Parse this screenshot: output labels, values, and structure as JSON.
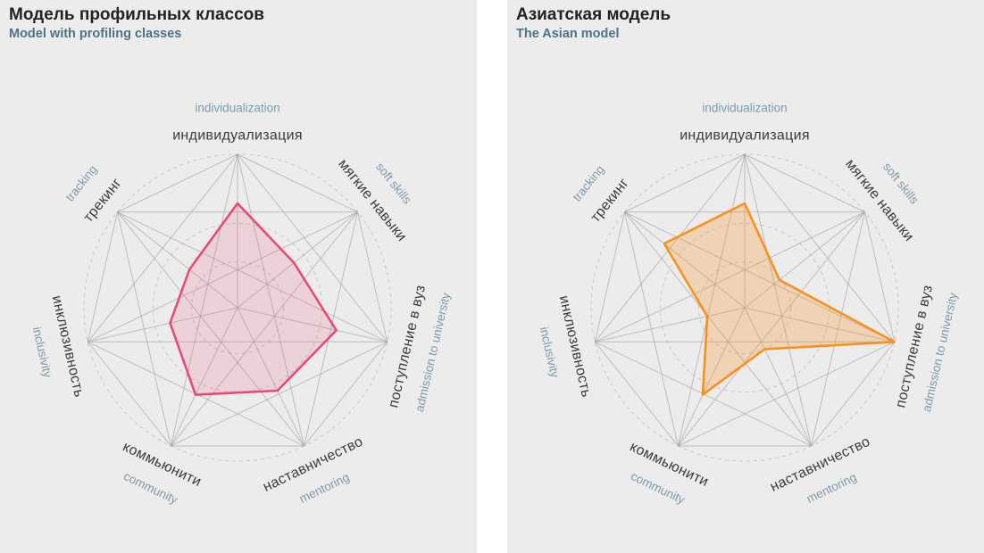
{
  "style": {
    "panel_bg": "#ececec",
    "title_color": "#222222",
    "subtitle_color": "#4d7383",
    "axis_ru_color": "#3c3c3c",
    "axis_en_color": "#7d9bab",
    "grid_line": "#9e9e9e",
    "dashed_circle": "#c6c6c6",
    "dashed_circle_levels": [
      0.3,
      0.55,
      1.0
    ]
  },
  "chart_data": [
    {
      "type": "radar",
      "title": "Модель профильных классов",
      "subtitle": "Model with profiling classes",
      "value_range": [
        0,
        1
      ],
      "axes": [
        {
          "ru": "индивидуализация",
          "en": "individualization"
        },
        {
          "ru": "мягкие навыки",
          "en": "soft skills"
        },
        {
          "ru": "поступление в вуз",
          "en": "admission to university"
        },
        {
          "ru": "наставничество",
          "en": "mentoring"
        },
        {
          "ru": "коммьюнити",
          "en": "community"
        },
        {
          "ru": "инклюзивность",
          "en": "inclusivity"
        },
        {
          "ru": "трекинг",
          "en": "tracking"
        }
      ],
      "values": [
        0.68,
        0.47,
        0.66,
        0.6,
        0.63,
        0.45,
        0.4
      ],
      "series_color": "#e84a78",
      "series_fill": "rgba(232,74,120,0.16)"
    },
    {
      "type": "radar",
      "title": "Азиатская модель",
      "subtitle": "The Asian model",
      "value_range": [
        0,
        1
      ],
      "axes": [
        {
          "ru": "индивидуализация",
          "en": "individualization"
        },
        {
          "ru": "мягкие навыки",
          "en": "soft skills"
        },
        {
          "ru": "поступление в вуз",
          "en": "admission to university"
        },
        {
          "ru": "наставничество",
          "en": "mentoring"
        },
        {
          "ru": "коммьюнити",
          "en": "community"
        },
        {
          "ru": "инклюзивность",
          "en": "inclusivity"
        },
        {
          "ru": "трекинг",
          "en": "tracking"
        }
      ],
      "values": [
        0.68,
        0.29,
        1.0,
        0.3,
        0.63,
        0.25,
        0.67
      ],
      "series_color": "#f6911e",
      "series_fill": "rgba(246,145,30,0.27)"
    }
  ]
}
